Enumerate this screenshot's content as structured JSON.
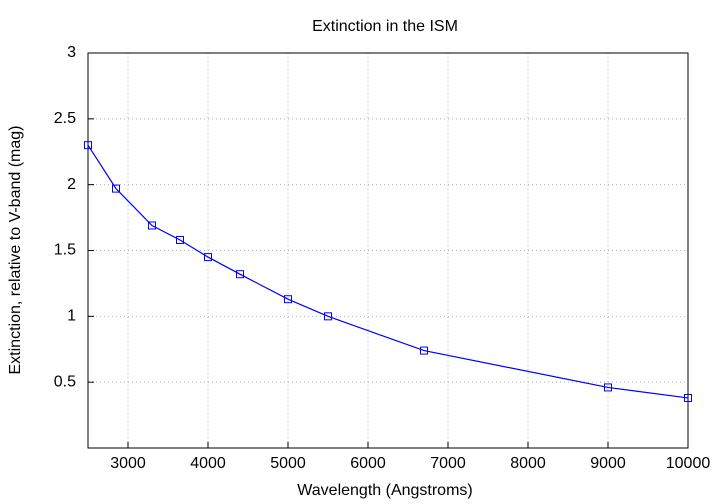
{
  "chart_data": {
    "type": "line",
    "title": "Extinction in the ISM",
    "x_label": "Wavelength (Angstroms)",
    "y_label": "Extinction, relative to V-band (mag)",
    "x": [
      2500,
      2850,
      3300,
      3650,
      4000,
      4400,
      5000,
      5500,
      6700,
      9000,
      10000
    ],
    "series": [
      {
        "color": "#0000ff",
        "values": [
          2.3,
          1.97,
          1.69,
          1.58,
          1.45,
          1.32,
          1.13,
          1.0,
          0.74,
          0.46,
          0.38
        ]
      }
    ],
    "xlim": [
      2500,
      10000
    ],
    "xticks": [
      3000,
      4000,
      5000,
      6000,
      7000,
      8000,
      9000,
      10000
    ],
    "ylim": [
      0,
      3
    ],
    "yticks": [
      0.5,
      1,
      1.5,
      2,
      2.5,
      3
    ],
    "grid": true
  }
}
